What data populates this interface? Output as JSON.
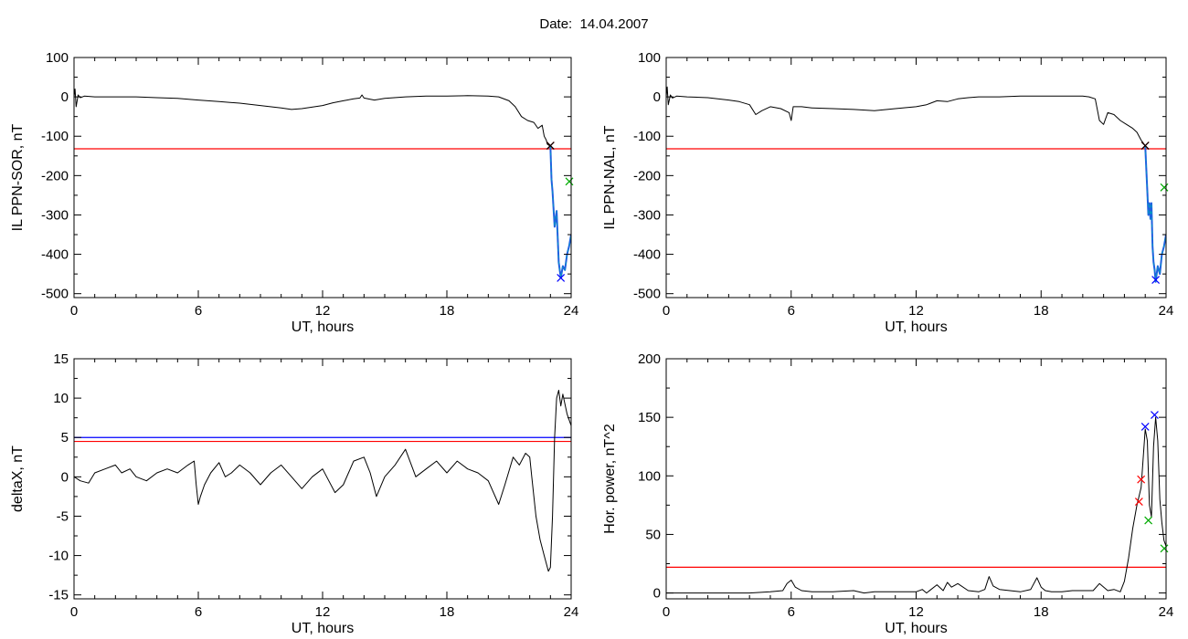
{
  "page": {
    "title": "Date:  14.04.2007"
  },
  "colors": {
    "trace": "#000000",
    "threshold": "#ff0000",
    "blue": "#0000ff",
    "green": "#00aa00",
    "cyan": "#00a0c0",
    "blue_segment": "#2060e0"
  },
  "chart_data": [
    {
      "type": "line",
      "ylabel": "IL PPN-SOR, nT",
      "xlabel": "UT, hours",
      "xlim": [
        0,
        24
      ],
      "ylim": [
        -510,
        100
      ],
      "xticks": [
        "0",
        "6",
        "12",
        "18",
        "24"
      ],
      "yticks": [
        "100",
        "0",
        "-100",
        "-200",
        "-300",
        "-400",
        "-500"
      ],
      "ytick_values": [
        100,
        0,
        -100,
        -200,
        -300,
        -400,
        -500
      ],
      "thresholds": [
        {
          "y": -132,
          "color": "red"
        }
      ],
      "series": [
        {
          "color": "black",
          "x": [
            0,
            0.05,
            0.1,
            0.2,
            0.3,
            0.5,
            1,
            2,
            3,
            4,
            5,
            6,
            7,
            8,
            9,
            10,
            10.5,
            11,
            12,
            12.5,
            13,
            13.5,
            13.8,
            13.9,
            14,
            14.5,
            15,
            16,
            17,
            18,
            19,
            20,
            20.5,
            21,
            21.3,
            21.6,
            21.9,
            22.2,
            22.4,
            22.6,
            22.7,
            22.8,
            22.85,
            22.9,
            23.0
          ],
          "y": [
            0,
            20,
            -25,
            5,
            -2,
            2,
            0,
            0,
            0,
            -2,
            -4,
            -8,
            -12,
            -16,
            -22,
            -28,
            -32,
            -30,
            -22,
            -15,
            -10,
            -5,
            -3,
            5,
            -3,
            -8,
            -4,
            0,
            2,
            2,
            3,
            2,
            0,
            -10,
            -25,
            -50,
            -60,
            -65,
            -80,
            -72,
            -100,
            -110,
            -120,
            -122,
            -126
          ]
        },
        {
          "color": "blue",
          "x": [
            23.0,
            23.05,
            23.1,
            23.2,
            23.3,
            23.4,
            23.45,
            23.5,
            23.6,
            23.7,
            23.8,
            23.9,
            24.0
          ],
          "y": [
            -126,
            -210,
            -240,
            -330,
            -290,
            -420,
            -440,
            -460,
            -430,
            -440,
            -400,
            -380,
            -350
          ]
        }
      ],
      "markers": [
        {
          "x": 23.0,
          "y": -124,
          "color": "red",
          "symbol": "x"
        },
        {
          "x": 23.0,
          "y": -124,
          "color": "black",
          "symbol": "x"
        },
        {
          "x": 23.5,
          "y": -460,
          "color": "blue",
          "symbol": "x"
        },
        {
          "x": 24.0,
          "y": -215,
          "color": "green",
          "symbol": "x"
        }
      ]
    },
    {
      "type": "line",
      "ylabel": "IL PPN-NAL, nT",
      "xlabel": "UT, hours",
      "xlim": [
        0,
        24
      ],
      "ylim": [
        -510,
        100
      ],
      "xticks": [
        "0",
        "6",
        "12",
        "18",
        "24"
      ],
      "yticks": [
        "100",
        "0",
        "-100",
        "-200",
        "-300",
        "-400",
        "-500"
      ],
      "ytick_values": [
        100,
        0,
        -100,
        -200,
        -300,
        -400,
        -500
      ],
      "thresholds": [
        {
          "y": -132,
          "color": "red"
        }
      ],
      "series": [
        {
          "color": "black",
          "x": [
            0,
            0.05,
            0.1,
            0.2,
            0.3,
            0.5,
            1,
            2,
            3,
            3.5,
            4,
            4.3,
            4.6,
            5,
            5.5,
            5.9,
            6.0,
            6.1,
            6.5,
            7,
            8,
            9,
            10,
            11,
            12,
            12.5,
            13,
            13.5,
            14,
            14.5,
            15,
            16,
            17,
            18,
            19,
            20,
            20.3,
            20.6,
            20.8,
            21.0,
            21.2,
            21.5,
            21.8,
            22.1,
            22.4,
            22.6,
            22.8,
            23.0
          ],
          "y": [
            0,
            25,
            -20,
            5,
            -3,
            2,
            0,
            -2,
            -8,
            -12,
            -20,
            -45,
            -35,
            -25,
            -30,
            -40,
            -60,
            -25,
            -25,
            -28,
            -30,
            -32,
            -35,
            -30,
            -25,
            -20,
            -10,
            -12,
            -5,
            -2,
            0,
            0,
            2,
            2,
            2,
            2,
            0,
            -5,
            -60,
            -70,
            -40,
            -45,
            -60,
            -70,
            -80,
            -90,
            -110,
            -124
          ]
        },
        {
          "color": "blue",
          "x": [
            23.0,
            23.05,
            23.1,
            23.15,
            23.2,
            23.25,
            23.3,
            23.35,
            23.4,
            23.45,
            23.5,
            23.6,
            23.7,
            23.8,
            23.9,
            24.0
          ],
          "y": [
            -124,
            -180,
            -240,
            -300,
            -270,
            -310,
            -270,
            -380,
            -420,
            -440,
            -470,
            -430,
            -450,
            -400,
            -380,
            -350
          ]
        }
      ],
      "markers": [
        {
          "x": 23.0,
          "y": -124,
          "color": "red",
          "symbol": "x"
        },
        {
          "x": 23.0,
          "y": -124,
          "color": "black",
          "symbol": "x"
        },
        {
          "x": 23.5,
          "y": -465,
          "color": "blue",
          "symbol": "x"
        },
        {
          "x": 24.0,
          "y": -230,
          "color": "green",
          "symbol": "x"
        }
      ]
    },
    {
      "type": "line",
      "ylabel": "deltaX, nT",
      "xlabel": "UT, hours",
      "xlim": [
        0,
        24
      ],
      "ylim": [
        -15.5,
        15
      ],
      "xticks": [
        "0",
        "6",
        "12",
        "18",
        "24"
      ],
      "yticks": [
        "15",
        "10",
        "5",
        "0",
        "-5",
        "-10",
        "-15"
      ],
      "ytick_values": [
        15,
        10,
        5,
        0,
        -5,
        -10,
        -15
      ],
      "thresholds": [
        {
          "y": 5.0,
          "color": "blue"
        },
        {
          "y": 4.5,
          "color": "red"
        }
      ],
      "series": [
        {
          "color": "black",
          "x": [
            0,
            0.3,
            0.7,
            1,
            1.5,
            2,
            2.3,
            2.7,
            3,
            3.5,
            4,
            4.5,
            5,
            5.5,
            5.8,
            5.9,
            6.0,
            6.1,
            6.3,
            6.6,
            7,
            7.3,
            7.6,
            8,
            8.5,
            9,
            9.5,
            10,
            10.5,
            11,
            11.5,
            12,
            12.3,
            12.6,
            13,
            13.5,
            14,
            14.3,
            14.6,
            15,
            15.5,
            16,
            16.5,
            17,
            17.5,
            18,
            18.5,
            19,
            19.5,
            20,
            20.5,
            20.8,
            21.2,
            21.5,
            21.8,
            22.0,
            22.1,
            22.3,
            22.5,
            22.7,
            22.9,
            23.0,
            23.1,
            23.2,
            23.3,
            23.4,
            23.5,
            23.6,
            23.8,
            24.0
          ],
          "y": [
            0,
            -0.5,
            -0.8,
            0.5,
            1.0,
            1.5,
            0.5,
            1.0,
            0,
            -0.5,
            0.5,
            1.0,
            0.5,
            1.5,
            2.0,
            -1.0,
            -3.5,
            -2.5,
            -1.0,
            0.5,
            1.8,
            0,
            0.5,
            1.5,
            0.5,
            -1.0,
            0.5,
            1.5,
            0,
            -1.5,
            0,
            1.0,
            -0.5,
            -2.0,
            -1.0,
            2.0,
            2.5,
            0.5,
            -2.5,
            0,
            1.5,
            3.5,
            0,
            1.0,
            2.0,
            0.5,
            2.0,
            1.0,
            0.5,
            -0.5,
            -3.5,
            -1.0,
            2.5,
            1.5,
            3.0,
            2.5,
            0,
            -5.0,
            -8.0,
            -10.0,
            -12.0,
            -11.5,
            -5.0,
            5.0,
            10.0,
            11.0,
            9.0,
            10.5,
            8.0,
            6.5
          ]
        }
      ],
      "markers": []
    },
    {
      "type": "line",
      "ylabel": "Hor. power, nT^2",
      "xlabel": "UT, hours",
      "xlim": [
        0,
        24
      ],
      "ylim": [
        -5,
        200
      ],
      "xticks": [
        "0",
        "6",
        "12",
        "18",
        "24"
      ],
      "yticks": [
        "200",
        "150",
        "100",
        "50",
        "0"
      ],
      "ytick_values": [
        200,
        150,
        100,
        50,
        0
      ],
      "thresholds": [
        {
          "y": 22,
          "color": "red"
        }
      ],
      "series": [
        {
          "color": "black",
          "x": [
            0,
            2,
            4,
            5,
            5.6,
            5.8,
            6.0,
            6.2,
            6.5,
            7,
            8,
            9,
            9.5,
            10,
            11,
            12,
            12.3,
            12.5,
            13,
            13.3,
            13.5,
            13.7,
            14,
            14.5,
            15,
            15.3,
            15.5,
            15.7,
            16,
            16.5,
            17,
            17.5,
            17.8,
            18,
            18.2,
            18.5,
            19,
            19.5,
            20,
            20.5,
            20.8,
            21.2,
            21.5,
            21.8,
            22.0,
            22.2,
            22.4,
            22.6,
            22.8,
            23.0,
            23.1,
            23.2,
            23.3,
            23.4,
            23.5,
            23.6,
            23.7,
            23.8,
            23.9,
            24.0
          ],
          "y": [
            0,
            0,
            0,
            1,
            2,
            8,
            11,
            5,
            2,
            1,
            1,
            2,
            0,
            1,
            1,
            1,
            3,
            0,
            7,
            2,
            9,
            5,
            8,
            2,
            1,
            3,
            14,
            6,
            3,
            2,
            1,
            3,
            13,
            5,
            2,
            1,
            1,
            2,
            2,
            2,
            8,
            2,
            3,
            1,
            10,
            30,
            55,
            75,
            90,
            140,
            130,
            75,
            65,
            125,
            150,
            130,
            80,
            60,
            45,
            40
          ]
        }
      ],
      "markers": [
        {
          "x": 22.7,
          "y": 78,
          "color": "red",
          "symbol": "x"
        },
        {
          "x": 22.8,
          "y": 97,
          "color": "red",
          "symbol": "x"
        },
        {
          "x": 23.0,
          "y": 142,
          "color": "blue",
          "symbol": "x"
        },
        {
          "x": 23.45,
          "y": 152,
          "color": "blue",
          "symbol": "x"
        },
        {
          "x": 23.15,
          "y": 62,
          "color": "green",
          "symbol": "x"
        },
        {
          "x": 24.0,
          "y": 38,
          "color": "green",
          "symbol": "x"
        }
      ]
    }
  ]
}
